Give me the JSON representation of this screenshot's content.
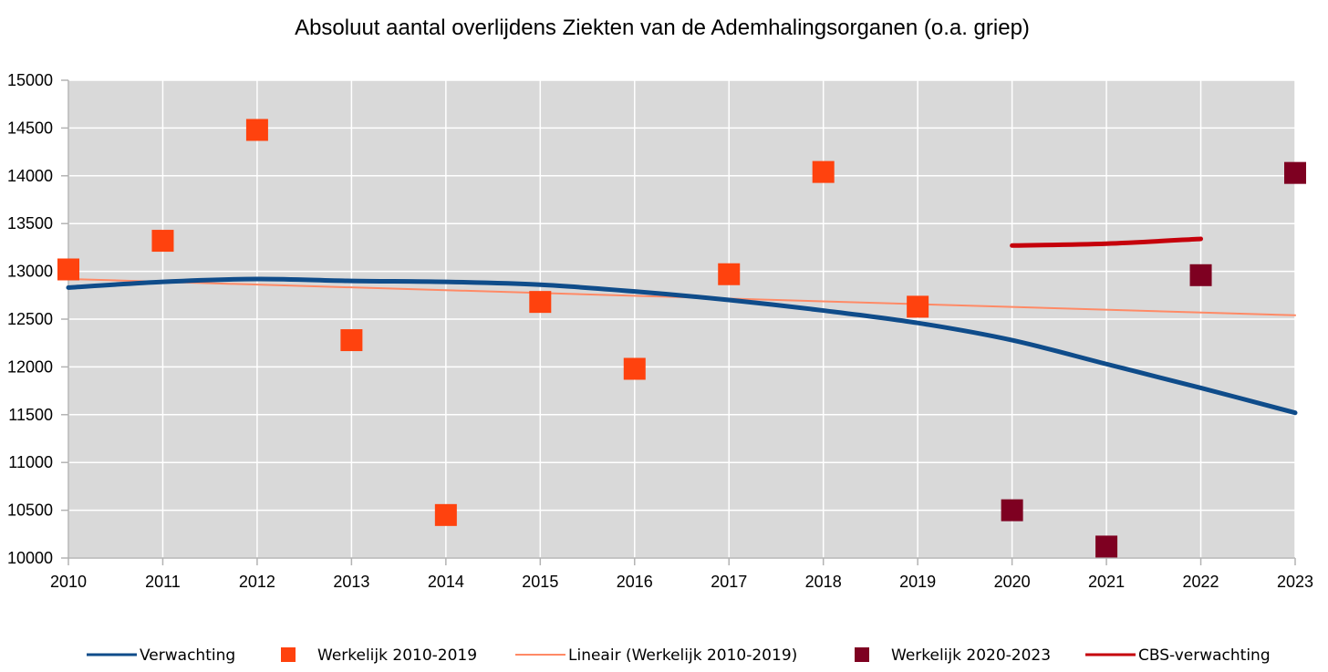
{
  "chart_data": {
    "type": "line",
    "title": "Absoluut aantal overlijdens Ziekten van de Ademhalingsorganen (o.a. griep)",
    "xlabel": "",
    "ylabel": "",
    "x_ticks": [
      2010,
      2011,
      2012,
      2013,
      2014,
      2015,
      2016,
      2017,
      2018,
      2019,
      2020,
      2021,
      2022,
      2023
    ],
    "y_ticks": [
      10000,
      10500,
      11000,
      11500,
      12000,
      12500,
      13000,
      13500,
      14000,
      14500,
      15000
    ],
    "xlim": [
      2010,
      2023
    ],
    "ylim": [
      10000,
      15000
    ],
    "grid": true,
    "legend_position": "bottom",
    "colors": {
      "plot_background": "#d9d9d9",
      "grid": "#ffffff",
      "verwachting": "#0f4c8a",
      "werkelijk_2010_2019": "#ff420e",
      "lineair": "#ff8a66",
      "werkelijk_2020_2023": "#7e0021",
      "cbs": "#c5000b"
    },
    "series": [
      {
        "name": "Verwachting",
        "kind": "line",
        "x": [
          2010,
          2011,
          2012,
          2013,
          2014,
          2015,
          2016,
          2017,
          2018,
          2019,
          2020,
          2021,
          2022,
          2023
        ],
        "y": [
          12830,
          12890,
          12920,
          12900,
          12890,
          12860,
          12790,
          12700,
          12590,
          12460,
          12280,
          12030,
          11780,
          11520
        ]
      },
      {
        "name": "Werkelijk 2010-2019",
        "kind": "scatter",
        "x": [
          2010,
          2011,
          2012,
          2013,
          2014,
          2015,
          2016,
          2017,
          2018,
          2019
        ],
        "y": [
          13020,
          13320,
          14480,
          12280,
          10450,
          12680,
          11980,
          12970,
          14040,
          12630
        ]
      },
      {
        "name": "Lineair (Werkelijk 2010-2019)",
        "kind": "line",
        "x": [
          2010,
          2023
        ],
        "y": [
          12920,
          12540
        ]
      },
      {
        "name": "Werkelijk 2020-2023",
        "kind": "scatter",
        "x": [
          2020,
          2021,
          2022,
          2023
        ],
        "y": [
          10500,
          10120,
          12960,
          14030
        ]
      },
      {
        "name": "CBS-verwachting",
        "kind": "line",
        "x": [
          2020,
          2021,
          2022
        ],
        "y": [
          13270,
          13290,
          13340
        ]
      }
    ]
  }
}
